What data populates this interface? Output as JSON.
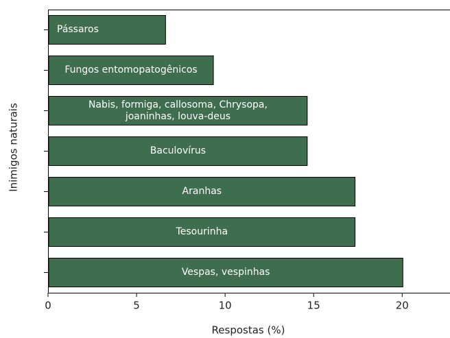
{
  "chart_data": {
    "type": "barh",
    "categories": [
      "Pássaros",
      "Fungos entomopatogênicos",
      "Nabis, formiga, callosoma, Chrysopa,\njoaninhas, louva-deus",
      "Baculovírus",
      "Aranhas",
      "Tesourinha",
      "Vespas, vespinhas"
    ],
    "values": [
      6.6,
      9.3,
      14.6,
      14.6,
      17.3,
      17.3,
      20.0
    ],
    "color": "#3f6e4e",
    "xlim": [
      0,
      22.7
    ],
    "xticks": [
      0,
      5,
      10,
      15,
      20
    ],
    "xlabel": "Respostas (%)",
    "ylabel": "Inimigos naturais"
  }
}
